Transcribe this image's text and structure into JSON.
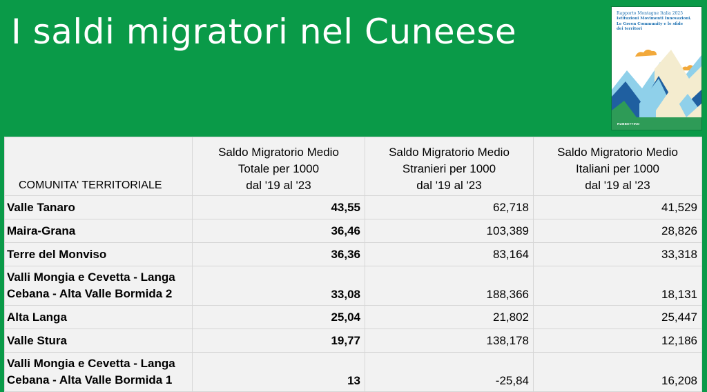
{
  "slide": {
    "title": "I saldi migratori nel Cuneese"
  },
  "book": {
    "series": "Rapporto Montagne Italia 2025",
    "subtitle_lines": [
      "Istituzioni Movimenti Innovazioni.",
      "Le Green Community e le sfide",
      "dei territori"
    ],
    "publisher": "RUBBETTINO",
    "colors": {
      "sky": "#ffffff",
      "sun": "#f2a93b",
      "mountain_light": "#8fd0ea",
      "mountain_dark": "#1f5fa0",
      "mountain_cream": "#f4eccf",
      "green": "#2e9b57"
    }
  },
  "table": {
    "headers": [
      {
        "lines": [
          "COMUNITA' TERRITORIALE"
        ]
      },
      {
        "lines": [
          "Saldo Migratorio Medio",
          "Totale per 1000",
          "dal '19 al '23"
        ]
      },
      {
        "lines": [
          "Saldo Migratorio Medio",
          "Stranieri per 1000",
          "dal '19 al '23"
        ]
      },
      {
        "lines": [
          "Saldo Migratorio Medio",
          "Italiani per 1000",
          "dal '19 al '23"
        ]
      }
    ],
    "rows": [
      {
        "name_lines": [
          "Valle Tanaro"
        ],
        "totale": "43,55",
        "stranieri": "62,718",
        "italiani": "41,529"
      },
      {
        "name_lines": [
          "Maira-Grana"
        ],
        "totale": "36,46",
        "stranieri": "103,389",
        "italiani": "28,826"
      },
      {
        "name_lines": [
          "Terre del Monviso"
        ],
        "totale": "36,36",
        "stranieri": "83,164",
        "italiani": "33,318"
      },
      {
        "name_lines": [
          "Valli Mongia e Cevetta - Langa",
          "Cebana - Alta Valle Bormida 2"
        ],
        "totale": "33,08",
        "stranieri": "188,366",
        "italiani": "18,131"
      },
      {
        "name_lines": [
          "Alta Langa"
        ],
        "totale": "25,04",
        "stranieri": "21,802",
        "italiani": "25,447"
      },
      {
        "name_lines": [
          "Valle Stura"
        ],
        "totale": "19,77",
        "stranieri": "138,178",
        "italiani": "12,186"
      },
      {
        "name_lines": [
          "Valli Mongia e Cevetta - Langa",
          "Cebana - Alta Valle Bormida 1"
        ],
        "totale": "13",
        "stranieri": "-25,84",
        "italiani": "16,208"
      }
    ]
  }
}
